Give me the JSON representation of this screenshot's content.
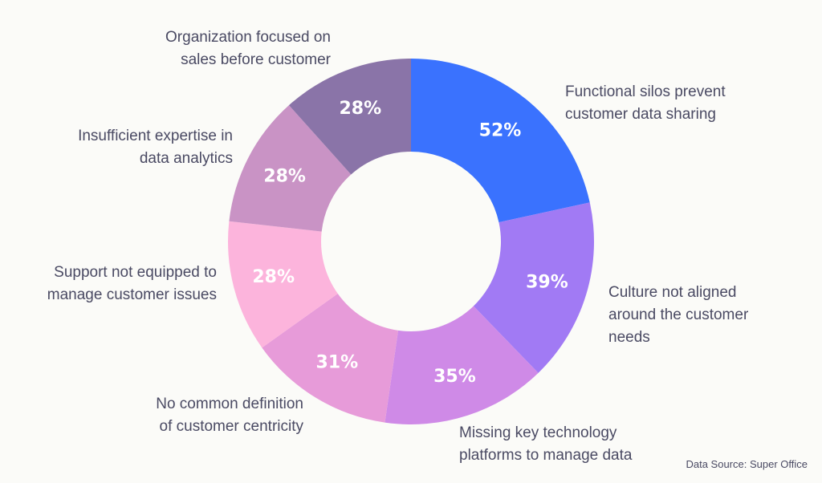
{
  "chart_data": {
    "type": "pie",
    "donut": true,
    "categories": [
      "Functional silos prevent\ncustomer data sharing",
      "Culture not aligned\naround the customer\nneeds",
      "Missing key technology\nplatforms to manage data",
      "No common definition\nof customer centricity",
      "Support not equipped to\nmanage customer issues",
      "Insufficient expertise in\ndata analytics",
      "Organization focused on\nsales before customer"
    ],
    "values": [
      52,
      39,
      35,
      31,
      28,
      28,
      28
    ],
    "value_labels": [
      "52%",
      "39%",
      "35%",
      "31%",
      "28%",
      "28%",
      "28%"
    ],
    "colors": [
      "#3a72fe",
      "#a17af4",
      "#cf8ae7",
      "#e79bd9",
      "#fcb4dc",
      "#c993c5",
      "#8a74a8"
    ],
    "source": "Data Source: Super Office"
  }
}
